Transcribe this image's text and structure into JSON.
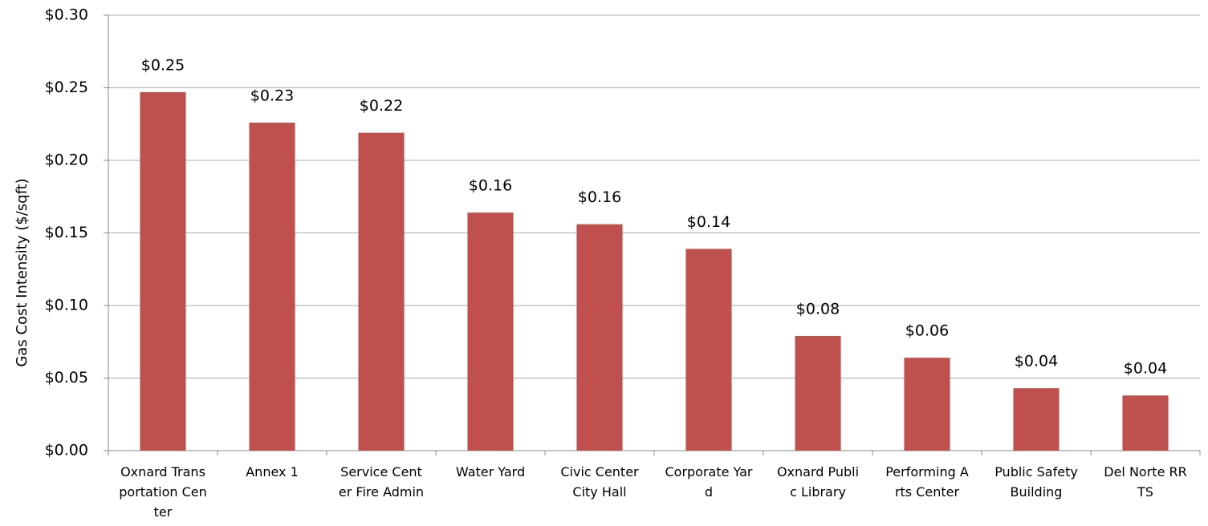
{
  "chart_data": {
    "type": "bar",
    "y_axis_label": "Gas Cost Intensity  ($/sqft)",
    "categories": [
      "Oxnard Transportation Center",
      "Annex 1",
      "Service Center Fire Admin",
      "Water Yard",
      "Civic Center City Hall",
      "Corporate Yard",
      "Oxnard Public Library",
      "Performing Arts Center",
      "Public Safety Building",
      "Del Norte RRTS"
    ],
    "values": [
      0.247,
      0.226,
      0.219,
      0.164,
      0.156,
      0.139,
      0.079,
      0.064,
      0.043,
      0.038
    ],
    "value_labels": [
      "$0.25",
      "$0.23",
      "$0.22",
      "$0.16",
      "$0.16",
      "$0.14",
      "$0.08",
      "$0.06",
      "$0.04",
      "$0.04"
    ],
    "color": "#c0504d",
    "ylim": [
      0,
      0.3
    ],
    "yticks": [
      {
        "value": 0,
        "label": "$0.00"
      },
      {
        "value": 0.05,
        "label": "$0.05"
      },
      {
        "value": 0.1,
        "label": "$0.10"
      },
      {
        "value": 0.15,
        "label": "$0.15"
      },
      {
        "value": 0.2,
        "label": "$0.20"
      },
      {
        "value": 0.25,
        "label": "$0.25"
      },
      {
        "value": 0.3,
        "label": "$0.30"
      }
    ],
    "grid": true
  }
}
